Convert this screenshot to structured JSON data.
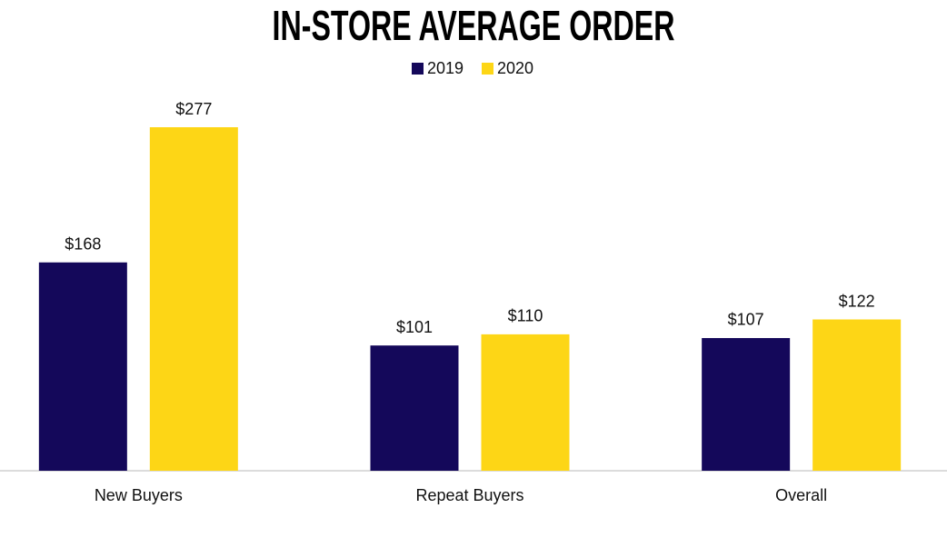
{
  "chart_data": {
    "type": "bar",
    "title": "IN-STORE AVERAGE ORDER",
    "categories": [
      "New Buyers",
      "Repeat Buyers",
      "Overall"
    ],
    "series": [
      {
        "name": "2019",
        "color": "#14085a",
        "values": [
          168,
          101,
          107
        ],
        "value_labels": [
          "$168",
          "$101",
          "$107"
        ]
      },
      {
        "name": "2020",
        "color": "#fdd616",
        "values": [
          277,
          110,
          122
        ],
        "value_labels": [
          "$277",
          "$110",
          "$122"
        ]
      }
    ]
  }
}
